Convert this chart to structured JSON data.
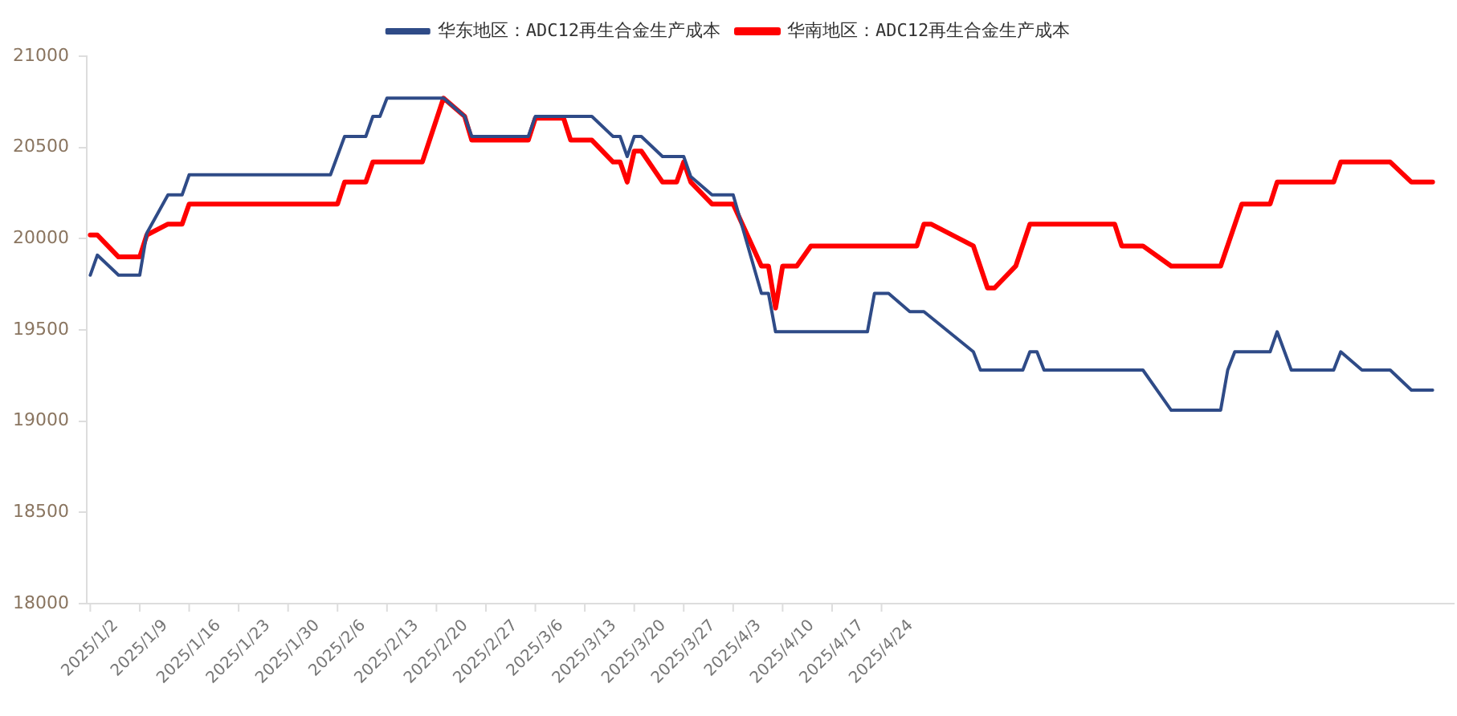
{
  "chart_data": {
    "type": "line",
    "legend": "top",
    "marker": "none",
    "line_style": "solid",
    "grid": false,
    "xlim": [
      "2025-01-01T12:00",
      "2025-07-14"
    ],
    "xticks": [
      {
        "value": "2025-01-02",
        "label": "2025/1/2"
      },
      {
        "value": "2025-01-09",
        "label": "2025/1/9"
      },
      {
        "value": "2025-01-16",
        "label": "2025/1/16"
      },
      {
        "value": "2025-01-23",
        "label": "2025/1/23"
      },
      {
        "value": "2025-01-30",
        "label": "2025/1/30"
      },
      {
        "value": "2025-02-06",
        "label": "2025/2/6"
      },
      {
        "value": "2025-02-13",
        "label": "2025/2/13"
      },
      {
        "value": "2025-02-20",
        "label": "2025/2/20"
      },
      {
        "value": "2025-02-27",
        "label": "2025/2/27"
      },
      {
        "value": "2025-03-06",
        "label": "2025/3/6"
      },
      {
        "value": "2025-03-13",
        "label": "2025/3/13"
      },
      {
        "value": "2025-03-20",
        "label": "2025/3/20"
      },
      {
        "value": "2025-03-27",
        "label": "2025/3/27"
      },
      {
        "value": "2025-04-03",
        "label": "2025/4/3"
      },
      {
        "value": "2025-04-10",
        "label": "2025/4/10"
      },
      {
        "value": "2025-04-17",
        "label": "2025/4/17"
      },
      {
        "value": "2025-04-24",
        "label": "2025/4/24"
      }
    ],
    "ylim": [
      18000,
      21000
    ],
    "yticks": [
      18000,
      18500,
      19000,
      19500,
      20000,
      20500,
      21000
    ],
    "series": [
      {
        "name": "华东地区：ADC12再生合金生产成本",
        "color": "#2f4b87",
        "x": [
          "2025-01-02",
          "2025-01-03",
          "2025-01-06",
          "2025-01-09",
          "2025-01-10",
          "2025-01-13",
          "2025-01-15",
          "2025-01-16",
          "2025-02-05",
          "2025-02-07",
          "2025-02-10",
          "2025-02-11",
          "2025-02-12",
          "2025-02-13",
          "2025-02-21",
          "2025-02-24",
          "2025-02-25",
          "2025-03-05",
          "2025-03-06",
          "2025-03-14",
          "2025-03-17",
          "2025-03-18",
          "2025-03-19",
          "2025-03-20",
          "2025-03-21",
          "2025-03-24",
          "2025-03-27",
          "2025-03-28",
          "2025-03-31",
          "2025-04-03",
          "2025-04-07",
          "2025-04-08",
          "2025-04-09",
          "2025-04-22",
          "2025-04-23",
          "2025-04-25",
          "2025-04-28",
          "2025-04-30",
          "2025-05-07",
          "2025-05-08",
          "2025-05-14",
          "2025-05-15",
          "2025-05-16",
          "2025-05-17",
          "2025-05-31",
          "2025-06-04",
          "2025-06-11",
          "2025-06-12",
          "2025-06-13",
          "2025-06-18",
          "2025-06-19",
          "2025-06-21",
          "2025-06-27",
          "2025-06-28",
          "2025-07-01",
          "2025-07-05",
          "2025-07-08",
          "2025-07-11"
        ],
        "values": [
          19800,
          19910,
          19800,
          19800,
          20030,
          20240,
          20240,
          20350,
          20350,
          20560,
          20560,
          20670,
          20670,
          20770,
          20770,
          20670,
          20560,
          20560,
          20670,
          20670,
          20560,
          20560,
          20450,
          20560,
          20560,
          20450,
          20450,
          20340,
          20240,
          20240,
          19700,
          19700,
          19490,
          19490,
          19700,
          19700,
          19600,
          19600,
          19380,
          19280,
          19280,
          19380,
          19380,
          19280,
          19280,
          19060,
          19060,
          19280,
          19380,
          19380,
          19490,
          19280,
          19280,
          19380,
          19280,
          19280,
          19170,
          19170
        ]
      },
      {
        "name": "华南地区：ADC12再生合金生产成本",
        "color": "#ff0000",
        "x": [
          "2025-01-02",
          "2025-01-03",
          "2025-01-06",
          "2025-01-09",
          "2025-01-10",
          "2025-01-13",
          "2025-01-15",
          "2025-01-16",
          "2025-02-06",
          "2025-02-07",
          "2025-02-10",
          "2025-02-11",
          "2025-02-18",
          "2025-02-21",
          "2025-02-24",
          "2025-02-25",
          "2025-03-05",
          "2025-03-06",
          "2025-03-10",
          "2025-03-11",
          "2025-03-14",
          "2025-03-17",
          "2025-03-18",
          "2025-03-19",
          "2025-03-20",
          "2025-03-21",
          "2025-03-24",
          "2025-03-26",
          "2025-03-27",
          "2025-03-28",
          "2025-03-31",
          "2025-04-03",
          "2025-04-07",
          "2025-04-08",
          "2025-04-09",
          "2025-04-10",
          "2025-04-12",
          "2025-04-14",
          "2025-04-29",
          "2025-04-30",
          "2025-05-01",
          "2025-05-07",
          "2025-05-09",
          "2025-05-10",
          "2025-05-13",
          "2025-05-15",
          "2025-05-27",
          "2025-05-28",
          "2025-05-31",
          "2025-06-04",
          "2025-06-11",
          "2025-06-14",
          "2025-06-18",
          "2025-06-19",
          "2025-06-27",
          "2025-06-28",
          "2025-07-05",
          "2025-07-08",
          "2025-07-11"
        ],
        "values": [
          20020,
          20020,
          19900,
          19900,
          20020,
          20080,
          20080,
          20190,
          20190,
          20310,
          20310,
          20420,
          20420,
          20770,
          20670,
          20540,
          20540,
          20660,
          20660,
          20540,
          20540,
          20420,
          20420,
          20310,
          20480,
          20480,
          20310,
          20310,
          20420,
          20310,
          20190,
          20190,
          19850,
          19850,
          19620,
          19850,
          19850,
          19960,
          19960,
          20080,
          20080,
          19960,
          19730,
          19730,
          19850,
          20080,
          20080,
          19960,
          19960,
          19850,
          19850,
          20190,
          20190,
          20310,
          20310,
          20420,
          20420,
          20310,
          20310
        ]
      }
    ]
  }
}
